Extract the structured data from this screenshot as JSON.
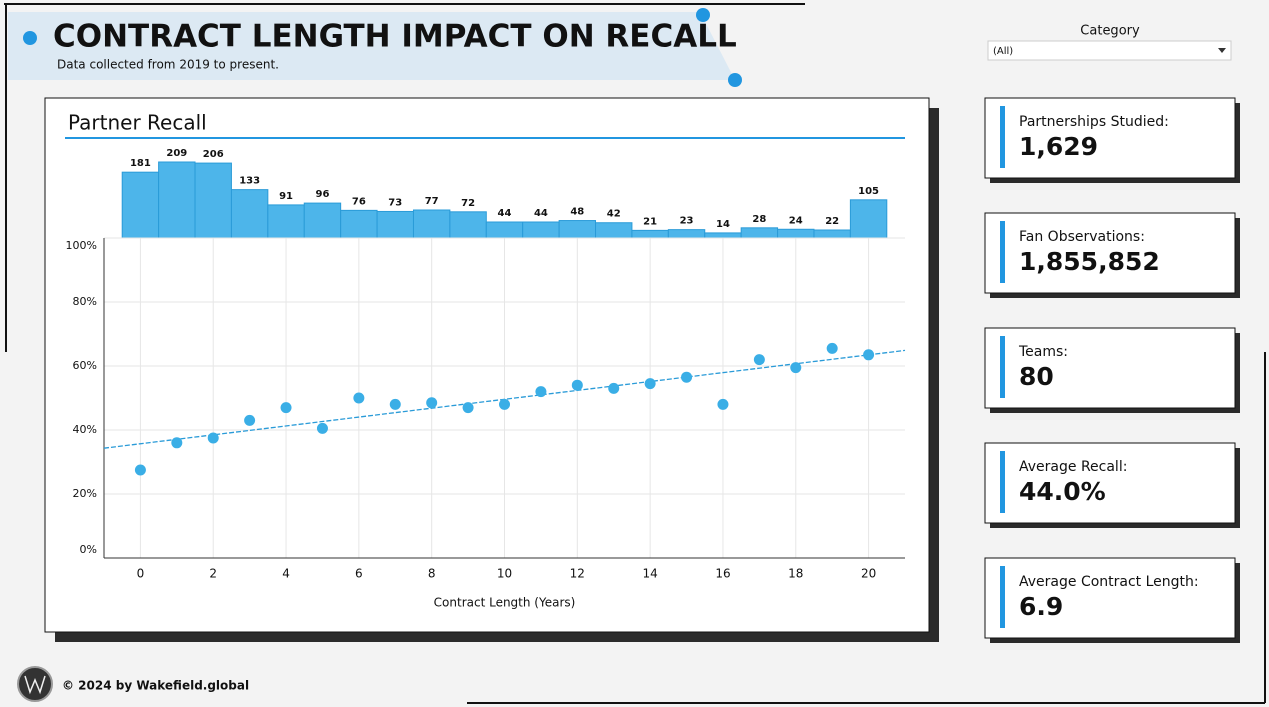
{
  "header": {
    "title": "CONTRACT LENGTH IMPACT ON RECALL",
    "subtitle": "Data collected from 2019 to present."
  },
  "filter": {
    "label": "Category",
    "value": "(All)"
  },
  "panel_title": "Partner Recall",
  "chart_data": [
    {
      "type": "bar",
      "x": [
        0,
        1,
        2,
        3,
        4,
        5,
        6,
        7,
        8,
        9,
        10,
        11,
        12,
        13,
        14,
        15,
        16,
        17,
        18,
        19,
        20
      ],
      "values": [
        181,
        209,
        206,
        133,
        91,
        96,
        76,
        73,
        77,
        72,
        44,
        44,
        48,
        42,
        21,
        23,
        14,
        28,
        24,
        22,
        105
      ],
      "color": "#4db5ea",
      "xlim": [
        -1,
        21
      ],
      "ylim": [
        0,
        220
      ]
    },
    {
      "type": "scatter",
      "x_label": "Contract Length (Years)",
      "x": [
        0,
        1,
        2,
        3,
        4,
        5,
        6,
        7,
        8,
        9,
        10,
        11,
        12,
        13,
        14,
        15,
        16,
        17,
        18,
        19,
        20
      ],
      "y": [
        27.5,
        36,
        37.5,
        43,
        47,
        40.5,
        50,
        48,
        48.5,
        47,
        48,
        52,
        54,
        53,
        54.5,
        56.5,
        48,
        62,
        59.5,
        65.5,
        63.5
      ],
      "color": "#3aaee6",
      "trendline": true,
      "xlim": [
        -1,
        21
      ],
      "xticks": [
        0,
        2,
        4,
        6,
        8,
        10,
        12,
        14,
        16,
        18,
        20
      ],
      "ylim": [
        0,
        100
      ],
      "yticks": [
        {
          "value": 0,
          "label": "0%"
        },
        {
          "value": 20,
          "label": "20%"
        },
        {
          "value": 40,
          "label": "40%"
        },
        {
          "value": 60,
          "label": "60%"
        },
        {
          "value": 80,
          "label": "80%"
        },
        {
          "value": 100,
          "label": "100%"
        }
      ],
      "grid": true
    }
  ],
  "cards": [
    {
      "label": "Partnerships Studied:",
      "value": "1,629"
    },
    {
      "label": "Fan Observations:",
      "value": "1,855,852"
    },
    {
      "label": "Teams:",
      "value": "80"
    },
    {
      "label": "Average Recall:",
      "value": "44.0%"
    },
    {
      "label": "Average Contract Length:",
      "value": "6.9"
    }
  ],
  "footer": {
    "copyright": "© 2024 by Wakefield.global"
  }
}
